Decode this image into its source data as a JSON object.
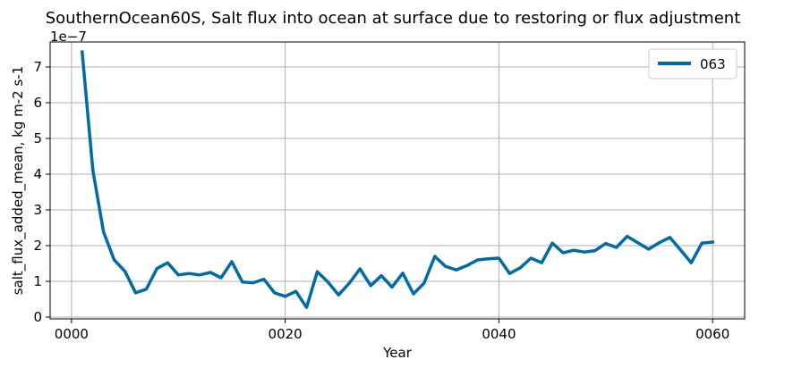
{
  "chart_data": {
    "type": "line",
    "title": "SouthernOcean60S, Salt flux into ocean at surface due to restoring or flux adjustment",
    "xlabel": "Year",
    "ylabel": "salt_flux_added_mean, kg m-2 s-1",
    "y_multiplier_label": "1e−7",
    "xlim": [
      -2,
      63
    ],
    "ylim": [
      -0.05,
      7.7
    ],
    "x_ticks": [
      0,
      20,
      40,
      60
    ],
    "x_tick_labels": [
      "0000",
      "0020",
      "0040",
      "0060"
    ],
    "y_ticks": [
      0,
      1,
      2,
      3,
      4,
      5,
      6,
      7
    ],
    "y_tick_labels": [
      "0",
      "1",
      "2",
      "3",
      "4",
      "5",
      "6",
      "7"
    ],
    "grid": true,
    "legend_position": "top-right",
    "series": [
      {
        "name": "063",
        "color": "#006ba4",
        "x": [
          1,
          2,
          3,
          4,
          5,
          6,
          7,
          8,
          9,
          10,
          11,
          12,
          13,
          14,
          15,
          16,
          17,
          18,
          19,
          20,
          21,
          22,
          23,
          24,
          25,
          26,
          27,
          28,
          29,
          30,
          31,
          32,
          33,
          34,
          35,
          36,
          37,
          38,
          39,
          40,
          41,
          42,
          43,
          44,
          45,
          46,
          47,
          48,
          49,
          50,
          51,
          52,
          53,
          54,
          55,
          56,
          57,
          58,
          59,
          60
        ],
        "values": [
          7.42,
          4.1,
          2.38,
          1.6,
          1.28,
          0.68,
          0.78,
          1.36,
          1.52,
          1.18,
          1.22,
          1.18,
          1.25,
          1.1,
          1.55,
          0.98,
          0.96,
          1.06,
          0.68,
          0.58,
          0.72,
          0.27,
          1.27,
          0.98,
          0.62,
          0.95,
          1.35,
          0.88,
          1.16,
          0.84,
          1.23,
          0.65,
          0.95,
          1.7,
          1.42,
          1.32,
          1.44,
          1.6,
          1.63,
          1.65,
          1.22,
          1.38,
          1.65,
          1.52,
          2.07,
          1.8,
          1.87,
          1.82,
          1.86,
          2.06,
          1.95,
          2.26,
          2.08,
          1.9,
          2.08,
          2.23,
          1.88,
          1.52,
          2.07,
          2.1
        ]
      }
    ]
  }
}
